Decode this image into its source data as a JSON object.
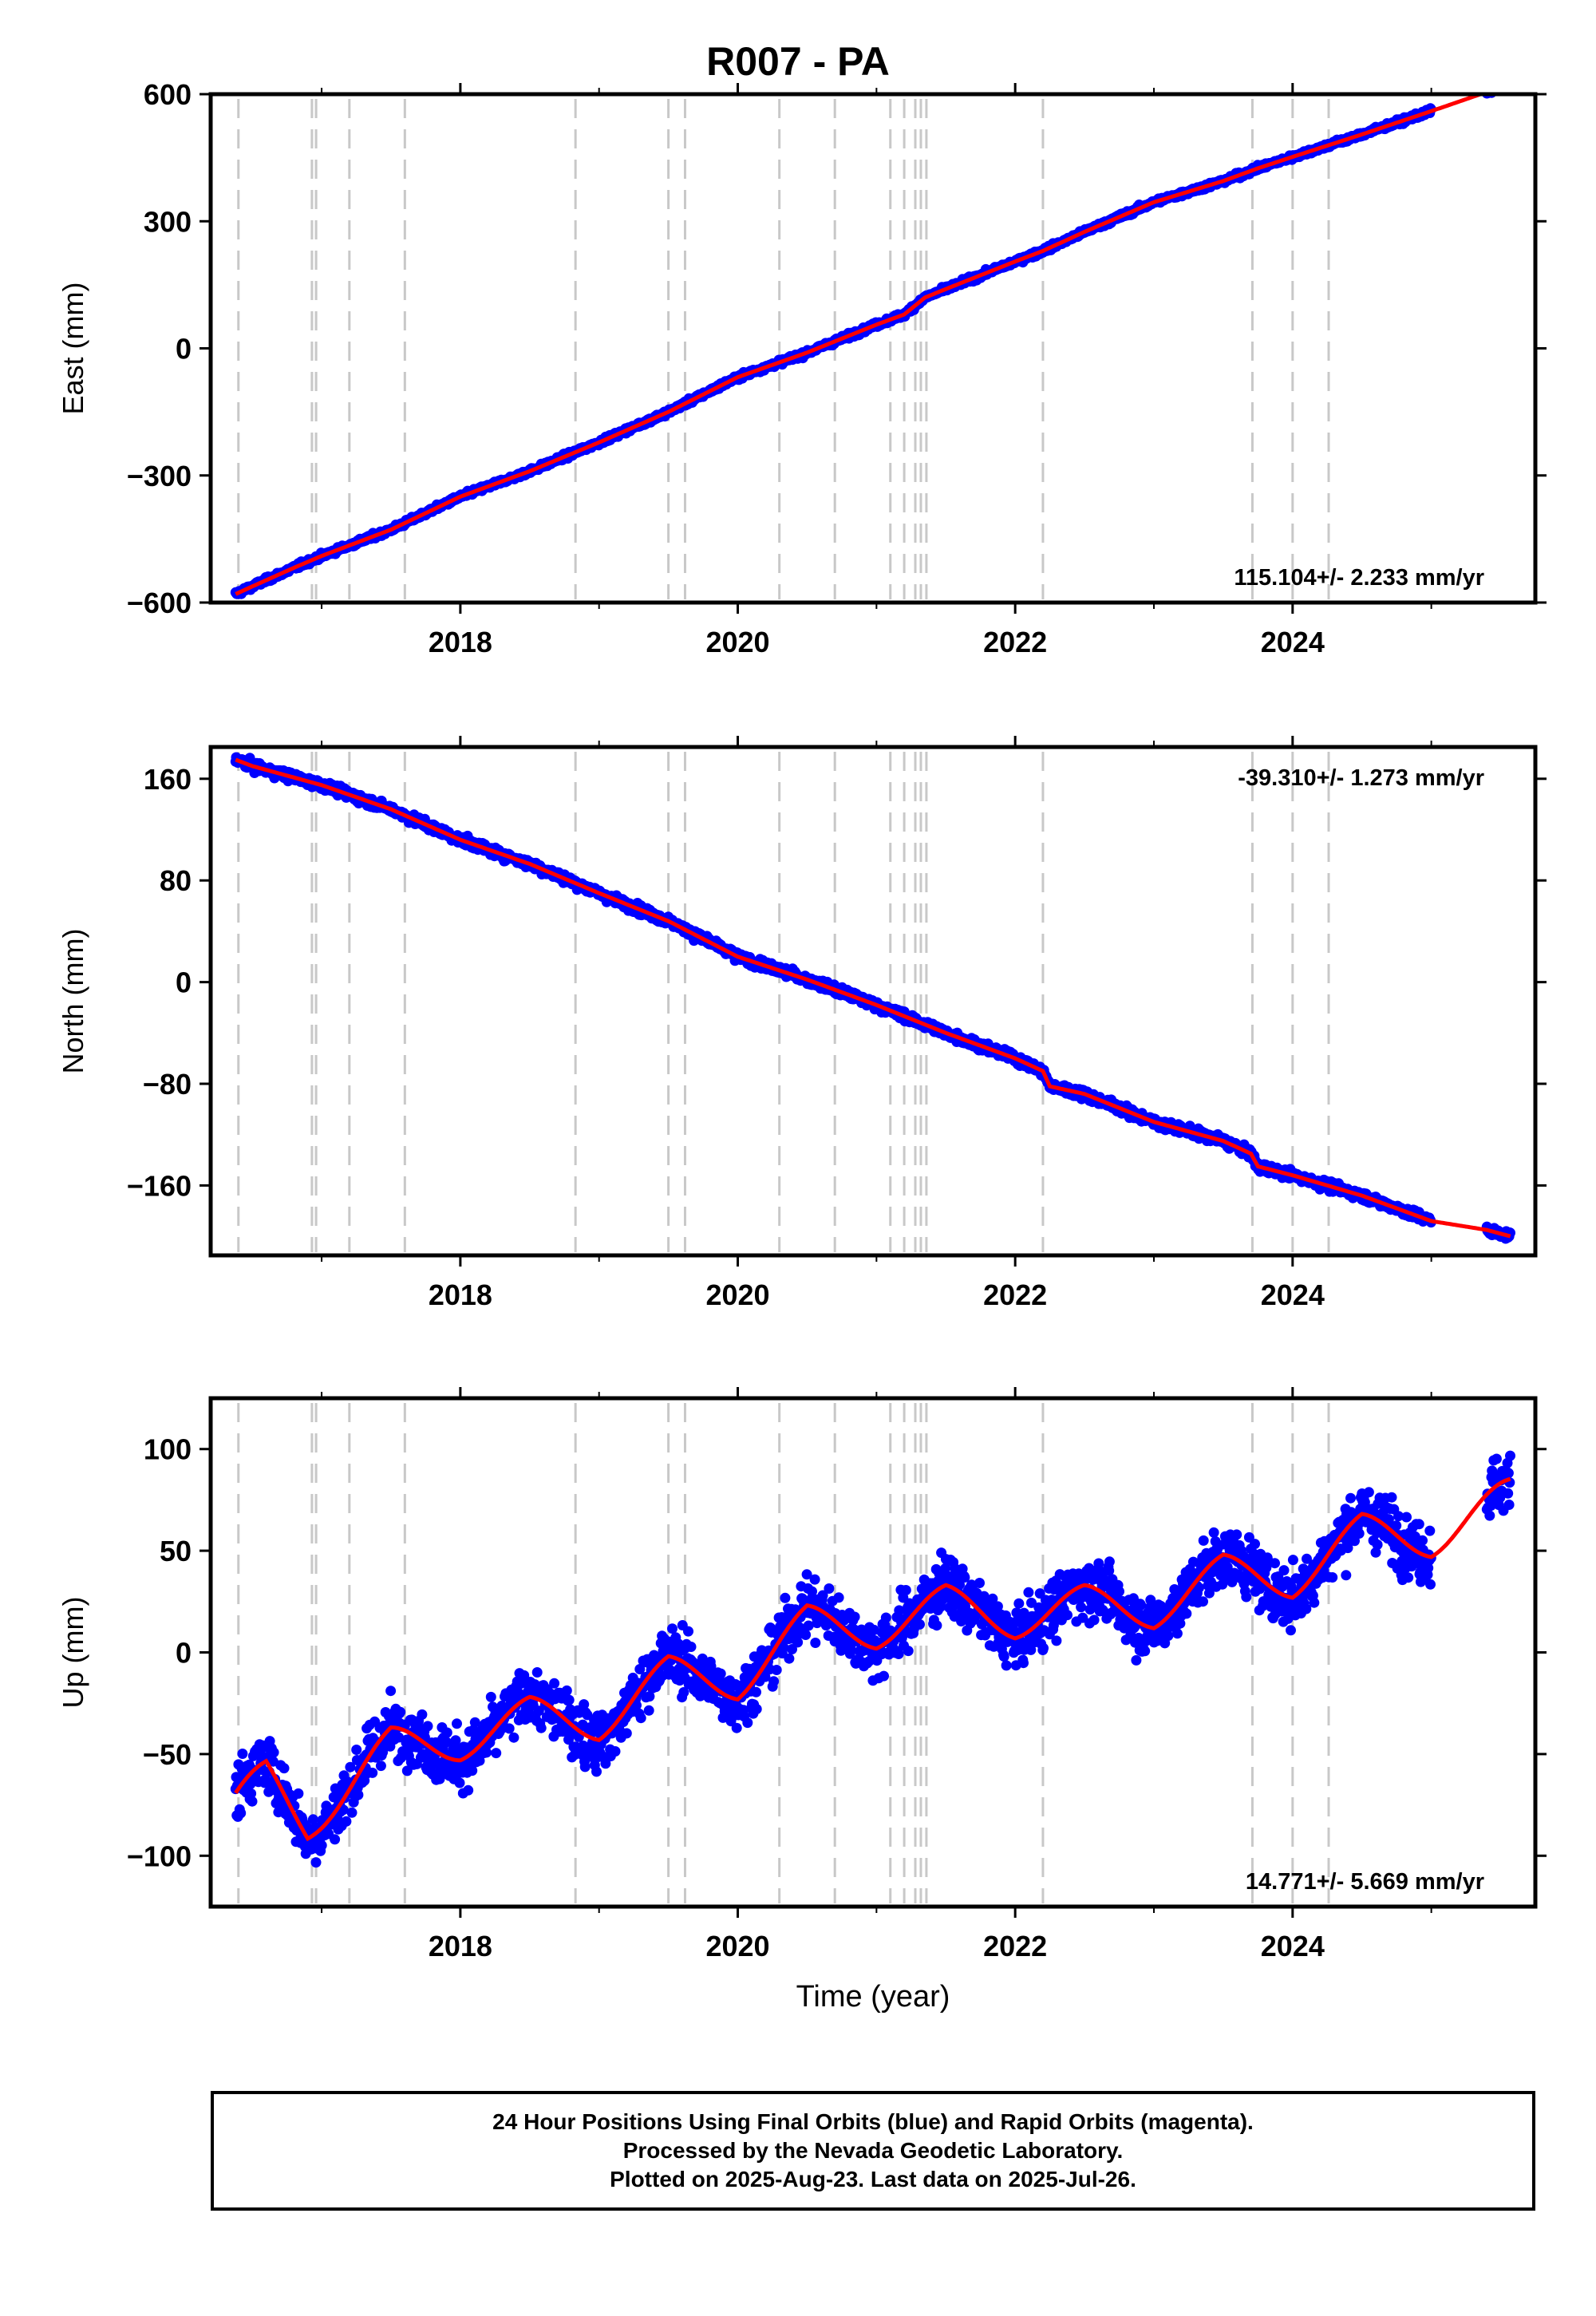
{
  "page": {
    "title": "R007 - PA",
    "xlabel": "Time (year)",
    "footer": [
      "24 Hour Positions Using Final Orbits (blue) and Rapid Orbits (magenta).",
      "Processed by the Nevada Geodetic Laboratory.",
      "Plotted on 2025-Aug-23. Last data on 2025-Jul-26."
    ]
  },
  "colors": {
    "points": "#0000ff",
    "fit": "#ff0000",
    "event_lines": "#c8c8c8",
    "frame": "#000000"
  },
  "chart_data": [
    {
      "type": "scatter",
      "ylabel": "East (mm)",
      "rate_label": "115.104+/- 2.233 mm/yr",
      "rate_position": "bottom-right",
      "xlim": [
        2016.2,
        2025.75
      ],
      "ylim": [
        -600,
        600
      ],
      "yticks": [
        -600,
        -300,
        0,
        300,
        600
      ],
      "ytick_labels": [
        "−600",
        "−300",
        "0",
        "300",
        "600"
      ],
      "xticks": [
        2018,
        2020,
        2022,
        2024
      ],
      "xtick_labels": [
        "2018",
        "2020",
        "2022",
        "2024"
      ],
      "grid": false,
      "data_range": [
        2016.38,
        2025.57
      ],
      "fit": {
        "slope": 131.5,
        "intercept_2020": -63,
        "amplitude": 0
      },
      "noise": 5,
      "gaps": [
        [
          2025.0,
          2025.4
        ]
      ],
      "offsets": [
        {
          "x": 2021.35,
          "dy": 35
        },
        {
          "x": 2022.2,
          "dy": 18
        }
      ],
      "series": [
        {
          "name": "Final Orbits",
          "points": [
            [
              2016.38,
              -580
            ],
            [
              2016.5,
              -562
            ],
            [
              2016.8,
              -518
            ],
            [
              2017.0,
              -490
            ],
            [
              2017.5,
              -428
            ],
            [
              2018.0,
              -350
            ],
            [
              2018.5,
              -290
            ],
            [
              2019.0,
              -222
            ],
            [
              2019.5,
              -150
            ],
            [
              2020.0,
              -68
            ],
            [
              2020.5,
              -10
            ],
            [
              2021.0,
              56
            ],
            [
              2021.2,
              80
            ],
            [
              2021.35,
              120
            ],
            [
              2021.5,
              140
            ],
            [
              2022.0,
              205
            ],
            [
              2022.2,
              230
            ],
            [
              2022.5,
              275
            ],
            [
              2023.0,
              345
            ],
            [
              2023.5,
              395
            ],
            [
              2023.75,
              425
            ],
            [
              2024.0,
              452
            ],
            [
              2024.5,
              505
            ],
            [
              2025.0,
              560
            ],
            [
              2025.4,
              605
            ],
            [
              2025.57,
              628
            ]
          ]
        }
      ]
    },
    {
      "type": "scatter",
      "ylabel": "North (mm)",
      "rate_label": "-39.310+/- 1.273 mm/yr",
      "rate_position": "top-right",
      "xlim": [
        2016.2,
        2025.75
      ],
      "ylim": [
        -215,
        185
      ],
      "yticks": [
        -160,
        -80,
        0,
        80,
        160
      ],
      "ytick_labels": [
        "−160",
        "−80",
        "0",
        "80",
        "160"
      ],
      "xticks": [
        2018,
        2020,
        2022,
        2024
      ],
      "xtick_labels": [
        "2018",
        "2020",
        "2022",
        "2024"
      ],
      "grid": false,
      "data_range": [
        2016.38,
        2025.57
      ],
      "fit": {
        "slope": -42,
        "intercept_2020": 12,
        "amplitude": 0
      },
      "noise": 3,
      "gaps": [
        [
          2025.0,
          2025.4
        ]
      ],
      "offsets": [
        {
          "x": 2022.2,
          "dy": -10
        },
        {
          "x": 2023.7,
          "dy": -8
        }
      ],
      "series": [
        {
          "name": "Final Orbits",
          "points": [
            [
              2016.38,
              175
            ],
            [
              2016.5,
              170
            ],
            [
              2017.0,
              155
            ],
            [
              2017.5,
              136
            ],
            [
              2018.0,
              112
            ],
            [
              2018.5,
              93
            ],
            [
              2019.0,
              70
            ],
            [
              2019.5,
              48
            ],
            [
              2020.0,
              20
            ],
            [
              2020.5,
              2
            ],
            [
              2021.0,
              -18
            ],
            [
              2021.5,
              -40
            ],
            [
              2022.0,
              -60
            ],
            [
              2022.2,
              -70
            ],
            [
              2022.25,
              -82
            ],
            [
              2022.5,
              -88
            ],
            [
              2023.0,
              -110
            ],
            [
              2023.5,
              -125
            ],
            [
              2023.7,
              -135
            ],
            [
              2023.75,
              -145
            ],
            [
              2024.0,
              -152
            ],
            [
              2024.5,
              -168
            ],
            [
              2025.0,
              -188
            ],
            [
              2025.4,
              -195
            ],
            [
              2025.57,
              -200
            ]
          ]
        }
      ]
    },
    {
      "type": "scatter",
      "ylabel": "Up (mm)",
      "rate_label": "14.771+/- 5.669 mm/yr",
      "rate_position": "bottom-right",
      "xlim": [
        2016.2,
        2025.75
      ],
      "ylim": [
        -125,
        125
      ],
      "yticks": [
        -100,
        -50,
        0,
        50,
        100
      ],
      "ytick_labels": [
        "−100",
        "−50",
        "0",
        "50",
        "100"
      ],
      "xticks": [
        2018,
        2020,
        2022,
        2024
      ],
      "xtick_labels": [
        "2018",
        "2020",
        "2022",
        "2024"
      ],
      "grid": false,
      "data_range": [
        2016.38,
        2025.57
      ],
      "fit": {
        "slope": 14.8,
        "intercept_2020": -10,
        "amplitude": 9
      },
      "noise": 12,
      "gaps": [
        [
          2025.0,
          2025.4
        ]
      ],
      "offsets": [],
      "series": [
        {
          "name": "Final Orbits",
          "points": [
            [
              2016.38,
              -75
            ],
            [
              2016.6,
              -60
            ],
            [
              2016.9,
              -85
            ],
            [
              2017.5,
              -45
            ],
            [
              2018.0,
              -45
            ],
            [
              2018.5,
              -30
            ],
            [
              2019.0,
              -35
            ],
            [
              2019.5,
              -10
            ],
            [
              2020.0,
              -15
            ],
            [
              2020.5,
              15
            ],
            [
              2021.0,
              10
            ],
            [
              2021.5,
              25
            ],
            [
              2022.0,
              15
            ],
            [
              2022.5,
              25
            ],
            [
              2023.0,
              20
            ],
            [
              2023.5,
              40
            ],
            [
              2024.0,
              35
            ],
            [
              2024.5,
              60
            ],
            [
              2025.0,
              55
            ],
            [
              2025.57,
              78
            ]
          ]
        }
      ]
    }
  ],
  "event_lines": [
    2016.4,
    2016.93,
    2016.96,
    2017.2,
    2017.6,
    2018.83,
    2019.5,
    2019.62,
    2020.3,
    2020.7,
    2021.1,
    2021.2,
    2021.28,
    2021.32,
    2021.36,
    2022.2,
    2023.71,
    2024.0,
    2024.26
  ]
}
